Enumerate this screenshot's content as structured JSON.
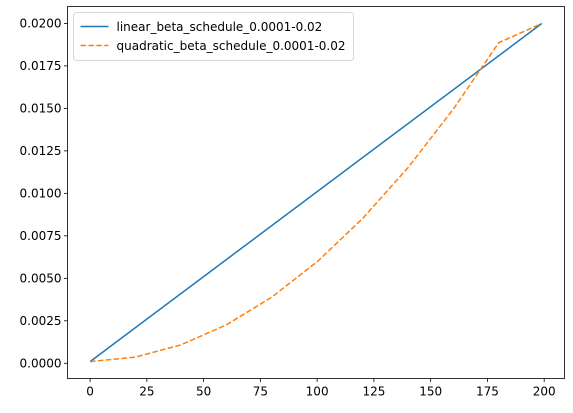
{
  "chart_data": {
    "type": "line",
    "title": "",
    "xlabel": "",
    "ylabel": "",
    "xlim": [
      -9.95,
      208.95
    ],
    "ylim": [
      -0.000895,
      0.020995
    ],
    "xticks": [
      0,
      25,
      50,
      75,
      100,
      125,
      150,
      175,
      200
    ],
    "xtick_labels": [
      "0",
      "25",
      "50",
      "75",
      "100",
      "125",
      "150",
      "175",
      "200"
    ],
    "yticks": [
      0.0,
      0.0025,
      0.005,
      0.0075,
      0.01,
      0.0125,
      0.015,
      0.0175,
      0.02
    ],
    "ytick_labels": [
      "0.0000",
      "0.0025",
      "0.0050",
      "0.0075",
      "0.0100",
      "0.0125",
      "0.0150",
      "0.0175",
      "0.0200"
    ],
    "grid": false,
    "legend_position": "top-left",
    "series": [
      {
        "name": "linear_beta_schedule_0.0001-0.02",
        "color": "#1f77b4",
        "line_style": "solid",
        "x": [
          0,
          199
        ],
        "y": [
          0.0001,
          0.02
        ]
      },
      {
        "name": "quadratic_beta_schedule_0.0001-0.02",
        "color": "#ff7f0e",
        "line_style": "dashed",
        "x": [
          0,
          20,
          40,
          60,
          80,
          100,
          120,
          140,
          160,
          180,
          199
        ],
        "y": [
          0.0001,
          0.000365,
          0.001085,
          0.00226,
          0.00389,
          0.005975,
          0.008515,
          0.01151,
          0.01496,
          0.018864,
          0.02
        ]
      }
    ]
  }
}
